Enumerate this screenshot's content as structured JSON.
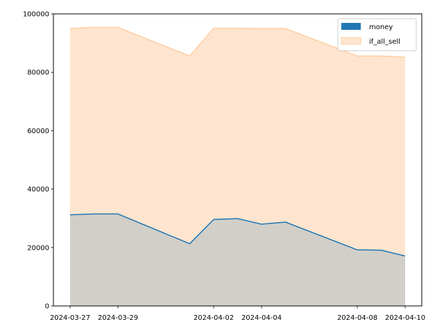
{
  "chart_data": {
    "type": "area",
    "title": "",
    "xlabel": "",
    "ylabel": "",
    "x": [
      "2024-03-27",
      "2024-03-28",
      "2024-03-29",
      "2024-04-01",
      "2024-04-02",
      "2024-04-03",
      "2024-04-04",
      "2024-04-05",
      "2024-04-08",
      "2024-04-09",
      "2024-04-10"
    ],
    "x_tick_labels": [
      "2024-03-27",
      "2024-03-29",
      "2024-04-02",
      "2024-04-04",
      "2024-04-08",
      "2024-04-10"
    ],
    "y_ticks": [
      0,
      20000,
      40000,
      60000,
      80000,
      100000
    ],
    "y_tick_labels": [
      "0",
      "20000",
      "40000",
      "60000",
      "80000",
      "100000"
    ],
    "ylim": [
      0,
      100000
    ],
    "series": [
      {
        "name": "money",
        "color": "#1f77b4",
        "values": [
          31200,
          31500,
          31500,
          21300,
          29600,
          29900,
          28000,
          28700,
          19200,
          19100,
          17100
        ]
      },
      {
        "name": "if_all_sell",
        "color": "#ff7f0e",
        "values": [
          95000,
          95400,
          95400,
          85600,
          95100,
          95100,
          95000,
          95000,
          85600,
          85600,
          85200
        ]
      }
    ],
    "legend_position": "top-right",
    "grid": false
  }
}
